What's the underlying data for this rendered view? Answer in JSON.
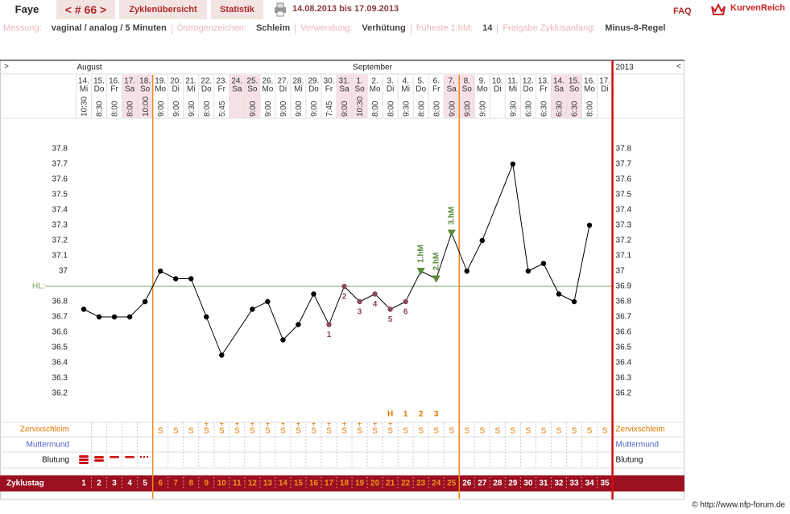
{
  "header": {
    "user": "Faye",
    "cycle": "< # 66 >",
    "tabs": [
      "Zyklenübersicht",
      "Statistik"
    ],
    "period": "14.08.2013 bis 17.09.2013",
    "faq": "FAQ",
    "brand": "KurvenReich"
  },
  "info": [
    {
      "label": "Messung:",
      "value": "vaginal / analog / 5 Minuten"
    },
    {
      "label": "Östrogenzeichen:",
      "value": "Schleim"
    },
    {
      "label": "Verwendung:",
      "value": "Verhütung"
    },
    {
      "label": "früheste 1.hM:",
      "value": "14"
    },
    {
      "label": "Freigabe Zyklusanfang:",
      "value": "Minus-8-Regel"
    }
  ],
  "chart_data": {
    "type": "line",
    "nav_prev": ">",
    "nav_next": "<",
    "months": [
      "August",
      "September"
    ],
    "year": "2013",
    "dates": [
      "14.",
      "15.",
      "16.",
      "17.",
      "18.",
      "19.",
      "20.",
      "21.",
      "22.",
      "23.",
      "24.",
      "25.",
      "26.",
      "27.",
      "28.",
      "29.",
      "30.",
      "31.",
      "1.",
      "2.",
      "3.",
      "4.",
      "5.",
      "6.",
      "7.",
      "8.",
      "9.",
      "10.",
      "11.",
      "12.",
      "13.",
      "14.",
      "15.",
      "16.",
      "17."
    ],
    "weekdays": [
      "Mi",
      "Do",
      "Fr",
      "Sa",
      "So",
      "Mo",
      "Di",
      "Mi",
      "Do",
      "Fr",
      "Sa",
      "So",
      "Mo",
      "Di",
      "Mi",
      "Do",
      "Fr",
      "Sa",
      "So",
      "Mo",
      "Di",
      "Mi",
      "Do",
      "Fr",
      "Sa",
      "So",
      "Mo",
      "Di",
      "Mi",
      "Do",
      "Fr",
      "Sa",
      "So",
      "Mo",
      "Di"
    ],
    "shade_weekdays": [
      "Sa",
      "So"
    ],
    "times": [
      "10:30",
      "8:30",
      "8:00",
      "8:00",
      "10:00",
      "9:00",
      "9:00",
      "9:30",
      "8:00",
      "5:45",
      null,
      "9:00",
      "9:00",
      "9:00",
      "9:00",
      "9:00",
      "7:45",
      "9:00",
      "10:30",
      "8:00",
      "8:00",
      "9:30",
      "8:00",
      "8:00",
      "9:00",
      "9:00",
      "9:00",
      null,
      "9:30",
      "6:30",
      "6:30",
      "6:30",
      "6:30",
      "8:00",
      null
    ],
    "values": [
      36.75,
      36.7,
      36.7,
      36.7,
      36.8,
      37.0,
      36.95,
      36.95,
      36.7,
      36.45,
      null,
      36.75,
      36.8,
      36.55,
      36.65,
      36.85,
      36.65,
      36.9,
      36.8,
      36.85,
      36.75,
      36.8,
      37.0,
      36.95,
      37.25,
      37.0,
      37.2,
      null,
      37.7,
      37.0,
      37.05,
      36.85,
      36.8,
      37.3,
      null
    ],
    "color": "#000000",
    "low_labels": [
      null,
      null,
      null,
      null,
      null,
      null,
      null,
      null,
      null,
      null,
      null,
      null,
      null,
      null,
      null,
      null,
      "1",
      "2",
      "3",
      "4",
      "5",
      "6",
      null,
      null,
      null,
      null,
      null,
      null,
      null,
      null,
      null,
      null,
      null,
      null,
      null
    ],
    "low_color": "#8b4a5a",
    "peak_labels": [
      null,
      null,
      null,
      null,
      null,
      null,
      null,
      null,
      null,
      null,
      null,
      null,
      null,
      null,
      null,
      null,
      null,
      null,
      null,
      null,
      null,
      null,
      "1.hM",
      "2.hM",
      "3.hM",
      null,
      null,
      null,
      null,
      null,
      null,
      null,
      null,
      null,
      null
    ],
    "peak_color": "#5a8a3a",
    "coverline": {
      "label": "HL:",
      "value": 36.9,
      "color": "#7aa05a"
    },
    "ylim": [
      36.0,
      38.0
    ],
    "yticks": [
      36.2,
      36.3,
      36.4,
      36.5,
      36.6,
      36.7,
      36.8,
      36.9,
      37,
      37.1,
      37.2,
      37.3,
      37.4,
      37.5,
      37.6,
      37.7,
      37.8
    ],
    "mucus_peak": [
      null,
      null,
      null,
      null,
      null,
      null,
      null,
      null,
      null,
      null,
      null,
      null,
      null,
      null,
      null,
      null,
      null,
      null,
      null,
      null,
      "H",
      "1",
      "2",
      "3",
      null,
      null,
      null,
      null,
      null,
      null,
      null,
      null,
      null,
      null,
      null
    ],
    "rows": [
      "Zervixschleim",
      "Muttermund",
      "Blutung"
    ],
    "zervix": [
      null,
      null,
      null,
      null,
      null,
      "S",
      "S",
      "S",
      "S",
      "S",
      "S",
      "S",
      "S",
      "S",
      "S",
      "S",
      "S",
      "S",
      "S",
      "S",
      "S",
      "S",
      "S",
      "S",
      "S",
      "S",
      "S",
      "S",
      "S",
      "S",
      "S",
      "S",
      "S",
      "S",
      "S"
    ],
    "zervix_plus": [
      null,
      null,
      null,
      null,
      null,
      null,
      null,
      null,
      "+",
      "+",
      "+",
      "+",
      "+",
      "+",
      "+",
      "+",
      "+",
      "+",
      "+",
      "+",
      "+",
      null,
      null,
      null,
      null,
      null,
      null,
      null,
      null,
      null,
      null,
      null,
      null,
      null,
      null
    ],
    "cycle_day_label": "Zyklustag",
    "cycle_days": [
      1,
      2,
      3,
      4,
      5,
      6,
      7,
      8,
      9,
      10,
      11,
      12,
      13,
      14,
      15,
      16,
      17,
      18,
      19,
      20,
      21,
      22,
      23,
      24,
      25,
      26,
      27,
      28,
      29,
      30,
      31,
      32,
      33,
      34,
      35
    ],
    "fertile_window": [
      6,
      25
    ]
  },
  "footer": "© http://www.nfp-forum.de"
}
